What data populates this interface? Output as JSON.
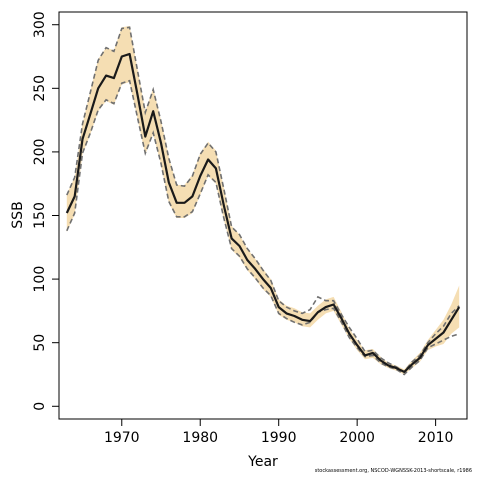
{
  "chart_data": {
    "type": "line",
    "title": "",
    "xlabel": "Year",
    "ylabel": "SSB",
    "xlim": [
      1962,
      2014
    ],
    "ylim": [
      -10,
      310
    ],
    "x_ticks": [
      1970,
      1980,
      1990,
      2000,
      2010
    ],
    "y_ticks": [
      0,
      50,
      100,
      150,
      200,
      250,
      300
    ],
    "grid": false,
    "legend": "none",
    "colors": {
      "band": "#f5deb3",
      "line": "#1a1a1a",
      "bound": "#707070"
    },
    "years": [
      1963,
      1964,
      1965,
      1966,
      1967,
      1968,
      1969,
      1970,
      1971,
      1972,
      1973,
      1974,
      1975,
      1976,
      1977,
      1978,
      1979,
      1980,
      1981,
      1982,
      1983,
      1984,
      1985,
      1986,
      1987,
      1988,
      1989,
      1990,
      1991,
      1992,
      1993,
      1994,
      1995,
      1996,
      1997,
      1998,
      1999,
      2000,
      2001,
      2002,
      2003,
      2004,
      2005,
      2006,
      2007,
      2008,
      2009,
      2010,
      2011,
      2012,
      2013
    ],
    "ssb": [
      152,
      165,
      210,
      230,
      250,
      260,
      258,
      275,
      277,
      245,
      212,
      232,
      207,
      176,
      160,
      160,
      165,
      181,
      194,
      187,
      158,
      132,
      126,
      115,
      108,
      100,
      93,
      78,
      73,
      71,
      68,
      67,
      74,
      78,
      80,
      69,
      57,
      48,
      40,
      42,
      36,
      32,
      30,
      27,
      33,
      38,
      48,
      53,
      58,
      68,
      78
    ],
    "upper": [
      167,
      180,
      222,
      248,
      273,
      282,
      280,
      298,
      299,
      265,
      232,
      250,
      225,
      196,
      174,
      174,
      182,
      199,
      208,
      201,
      172,
      142,
      135,
      124,
      116,
      108,
      100,
      84,
      79,
      77,
      74,
      73,
      79,
      84,
      86,
      74,
      61,
      52,
      44,
      45,
      39,
      34,
      32,
      29,
      36,
      42,
      52,
      60,
      68,
      80,
      95
    ],
    "lower": [
      137,
      151,
      198,
      214,
      232,
      240,
      237,
      253,
      255,
      226,
      198,
      214,
      190,
      160,
      148,
      148,
      152,
      166,
      181,
      175,
      147,
      123,
      117,
      107,
      100,
      92,
      86,
      72,
      68,
      66,
      63,
      62,
      68,
      73,
      75,
      64,
      53,
      44,
      37,
      38,
      33,
      30,
      28,
      25,
      30,
      35,
      44,
      47,
      49,
      57,
      62
    ],
    "upper_dashed": [
      166,
      180,
      222,
      247,
      272,
      282,
      279,
      297,
      298,
      264,
      231,
      249,
      224,
      195,
      174,
      173,
      181,
      198,
      207,
      200,
      171,
      141,
      135,
      124,
      116,
      107,
      99,
      83,
      78,
      75,
      73,
      76,
      86,
      83,
      83,
      72,
      62,
      53,
      43,
      44,
      38,
      34,
      31,
      27,
      35,
      40,
      50,
      57,
      63,
      73,
      79
    ],
    "lower_dashed": [
      138,
      152,
      199,
      215,
      233,
      241,
      238,
      254,
      256,
      227,
      199,
      215,
      191,
      161,
      149,
      149,
      153,
      167,
      182,
      176,
      148,
      124,
      118,
      108,
      101,
      93,
      87,
      73,
      69,
      66,
      64,
      66,
      74,
      76,
      77,
      66,
      54,
      46,
      39,
      40,
      34,
      31,
      29,
      25,
      31,
      36,
      46,
      49,
      52,
      55,
      57
    ]
  },
  "footer": "stockassessment.org, NSCOD-WGNSSK-2013-shortscale, r1986"
}
